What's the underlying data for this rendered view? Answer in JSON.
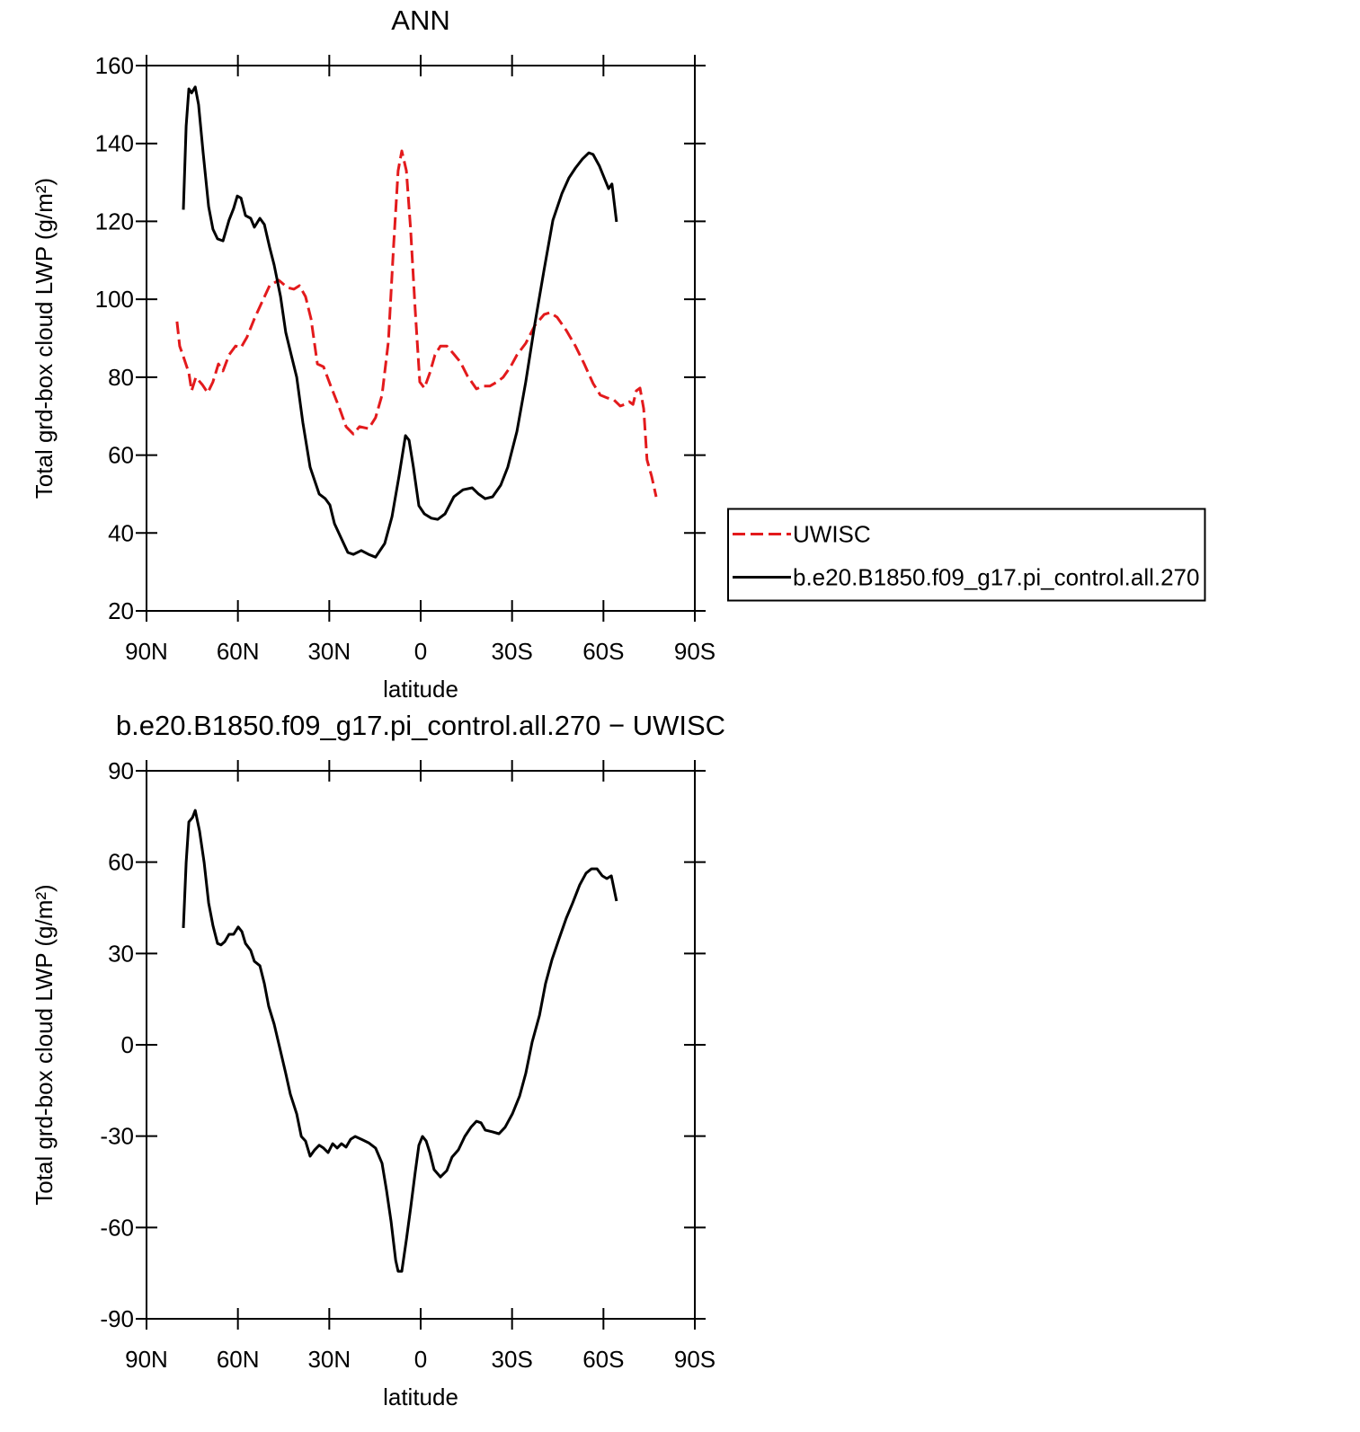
{
  "chart_data": [
    {
      "type": "line",
      "title": "ANN",
      "xlabel": "latitude",
      "ylabel": "Total grd-box cloud LWP (g/m²)",
      "xlim": [
        90,
        -90
      ],
      "xticks": [
        {
          "value": 90,
          "label": "90N"
        },
        {
          "value": 60,
          "label": "60N"
        },
        {
          "value": 30,
          "label": "30N"
        },
        0,
        {
          "value": -30,
          "label": "30S"
        },
        {
          "value": -60,
          "label": "60S"
        },
        {
          "value": -90,
          "label": "90S"
        }
      ],
      "ylim": [
        20,
        160
      ],
      "yticks": [
        20,
        40,
        60,
        80,
        100,
        120,
        140,
        160
      ],
      "legend": "right",
      "series": [
        {
          "name": "UWISC",
          "color": "#e31a1c",
          "linestyle": "dashed",
          "x": [
            80,
            79.1,
            77.6,
            76.1,
            75.2,
            73.8,
            71.7,
            69.9,
            68.2,
            66.4,
            64.9,
            62.9,
            60.8,
            59,
            57,
            54.6,
            51.9,
            49.6,
            46.6,
            43.7,
            41.6,
            39.8,
            37.8,
            36,
            33.9,
            31.9,
            29.5,
            26.6,
            24.5,
            22.1,
            20.1,
            17.1,
            14.8,
            12.7,
            10.6,
            8.9,
            7.4,
            6.2,
            4.7,
            3.3,
            1.8,
            0.3,
            -1.2,
            -3,
            -4.7,
            -6.5,
            -8.6,
            -10.6,
            -13,
            -15.3,
            -18.3,
            -20.4,
            -22.7,
            -25.1,
            -27.1,
            -29.5,
            -31.6,
            -34.5,
            -37.5,
            -40.5,
            -42.5,
            -44.8,
            -47.8,
            -50.8,
            -53.7,
            -56.6,
            -59,
            -61.1,
            -63.4,
            -65.5,
            -67,
            -68.5,
            -69.7,
            -70.8,
            -72,
            -73.2,
            -74.3,
            -75.8,
            -77.3
          ],
          "values": [
            94.3,
            88,
            84.6,
            81.1,
            76.5,
            80,
            78.1,
            76,
            78.8,
            83.4,
            81.6,
            85.7,
            88,
            87.6,
            90.3,
            95,
            99.6,
            103.5,
            104.9,
            103,
            102.6,
            103.5,
            100.7,
            95,
            83.4,
            82.7,
            77.7,
            71.9,
            67.3,
            65.4,
            67.3,
            66.8,
            69.6,
            75.4,
            89.2,
            113.4,
            133,
            138.1,
            133,
            118,
            97.3,
            78.8,
            77.2,
            81.1,
            85.7,
            88,
            88,
            86.2,
            83.9,
            80.4,
            77,
            77.7,
            77.7,
            78.8,
            80,
            82.7,
            85.7,
            88.7,
            93.3,
            96.1,
            96.6,
            95.4,
            92,
            88,
            83.4,
            78.4,
            75.4,
            74.7,
            74.2,
            72.6,
            73,
            73.7,
            73,
            76.5,
            77.2,
            71.9,
            58.8,
            54.6,
            49.3
          ]
        },
        {
          "name": "b.e20.B1850.f09_g17.pi_control.all.270",
          "color": "#000000",
          "linestyle": "solid",
          "x": [
            77.9,
            77,
            76.1,
            75.2,
            74,
            72.9,
            71.4,
            69.6,
            68.2,
            66.7,
            64.9,
            62.9,
            61.4,
            60.2,
            59,
            57.5,
            55.8,
            54.6,
            52.8,
            51.3,
            49.6,
            48.1,
            46,
            44.3,
            42.5,
            40.7,
            38.7,
            36.3,
            33.3,
            31.3,
            29.8,
            28.3,
            26,
            23.9,
            22.1,
            19.5,
            17.1,
            14.8,
            11.8,
            9.4,
            7.1,
            5,
            3.8,
            2.4,
            0.6,
            -1.2,
            -3.5,
            -5.6,
            -8,
            -10.9,
            -13.9,
            -16.9,
            -19,
            -21.2,
            -23.6,
            -26.3,
            -28.6,
            -31.6,
            -34.5,
            -37.5,
            -40.5,
            -43.4,
            -46.4,
            -48.7,
            -50.8,
            -53.1,
            -55.2,
            -56.6,
            -58.7,
            -60.5,
            -61.7,
            -62.8,
            -64.3
          ],
          "values": [
            123,
            144.5,
            154,
            153,
            154.5,
            150,
            137.6,
            123.8,
            118,
            115.5,
            115,
            120.3,
            123.3,
            126.5,
            126,
            121.5,
            120.8,
            118.5,
            120.8,
            119.2,
            113.4,
            108.8,
            100.7,
            91.5,
            85.7,
            80,
            68.4,
            56.9,
            50,
            48.8,
            47.2,
            42.4,
            38.5,
            35,
            34.5,
            35.5,
            34.5,
            33.8,
            37.3,
            44.2,
            54.6,
            65,
            63.8,
            56.9,
            47,
            44.9,
            43.8,
            43.5,
            44.9,
            49.3,
            51.1,
            51.6,
            50,
            48.8,
            49.3,
            52.3,
            56.9,
            66.1,
            78.8,
            93.8,
            107.6,
            120.3,
            127.2,
            131.2,
            133.7,
            136,
            137.6,
            137.2,
            134.2,
            130.7,
            128.4,
            129.6,
            119.9
          ]
        }
      ]
    },
    {
      "type": "line",
      "title": "b.e20.B1850.f09_g17.pi_control.all.270 − UWISC",
      "xlabel": "latitude",
      "ylabel": "Total grd-box cloud LWP (g/m²)",
      "xlim": [
        90,
        -90
      ],
      "xticks": [
        {
          "value": 90,
          "label": "90N"
        },
        {
          "value": 60,
          "label": "60N"
        },
        {
          "value": 30,
          "label": "30N"
        },
        0,
        {
          "value": -30,
          "label": "30S"
        },
        {
          "value": -60,
          "label": "60S"
        },
        {
          "value": -90,
          "label": "90S"
        }
      ],
      "ylim": [
        -90,
        90
      ],
      "yticks": [
        -90,
        -60,
        -30,
        0,
        30,
        60,
        90
      ],
      "series": [
        {
          "color": "#000000",
          "linestyle": "solid",
          "x": [
            77.9,
            77,
            76.1,
            74.9,
            74,
            72.6,
            71.1,
            69.6,
            68.2,
            66.7,
            65.5,
            64.3,
            62.9,
            61.4,
            59.9,
            58.7,
            57.5,
            55.8,
            54.6,
            52.8,
            51.3,
            49.9,
            48.1,
            46,
            44.3,
            42.8,
            40.7,
            39.2,
            37.8,
            36.3,
            34.8,
            33.3,
            31.9,
            30.4,
            28.9,
            27.4,
            26,
            24.5,
            23,
            21.5,
            19.5,
            17.1,
            14.8,
            12.7,
            11.2,
            9.7,
            8.2,
            7.4,
            6.2,
            4.7,
            3.3,
            1.8,
            0.6,
            -0.6,
            -1.8,
            -3,
            -4.4,
            -6.5,
            -8.6,
            -10.3,
            -12.4,
            -14.5,
            -16.5,
            -18.3,
            -19.8,
            -21.2,
            -23.6,
            -25.7,
            -27.7,
            -30.1,
            -32.5,
            -34.5,
            -36.6,
            -39,
            -41,
            -43.1,
            -45.4,
            -47.8,
            -49.9,
            -52.2,
            -54.3,
            -56.1,
            -57.9,
            -59.6,
            -61.1,
            -62.6,
            -64.3
          ],
          "values": [
            38.4,
            59.9,
            73.2,
            74.7,
            77,
            70.2,
            59.9,
            46.6,
            39.2,
            33.3,
            32.8,
            33.9,
            36.3,
            36.3,
            38.7,
            37.2,
            33.3,
            31,
            27.4,
            26,
            20.1,
            12.7,
            6.8,
            -2.1,
            -9.4,
            -16.2,
            -22.7,
            -30.1,
            -31.6,
            -36.6,
            -34.5,
            -33,
            -33.9,
            -35.4,
            -32.5,
            -33.9,
            -32.5,
            -33.6,
            -31,
            -30.1,
            -31,
            -32.2,
            -33.9,
            -38.9,
            -47.8,
            -58.1,
            -70.8,
            -74.4,
            -74.4,
            -64,
            -53.7,
            -41.9,
            -33,
            -30.1,
            -31.6,
            -35.4,
            -41,
            -43.4,
            -41.3,
            -36.9,
            -34.5,
            -30.1,
            -27.1,
            -25.1,
            -25.6,
            -28,
            -28.6,
            -29.2,
            -27.1,
            -22.7,
            -16.8,
            -9.4,
            0.9,
            9.7,
            20.1,
            28,
            34.8,
            41.6,
            46.6,
            52.5,
            56.4,
            57.8,
            57.8,
            55.5,
            54.6,
            55.5,
            47.2
          ]
        }
      ]
    }
  ]
}
